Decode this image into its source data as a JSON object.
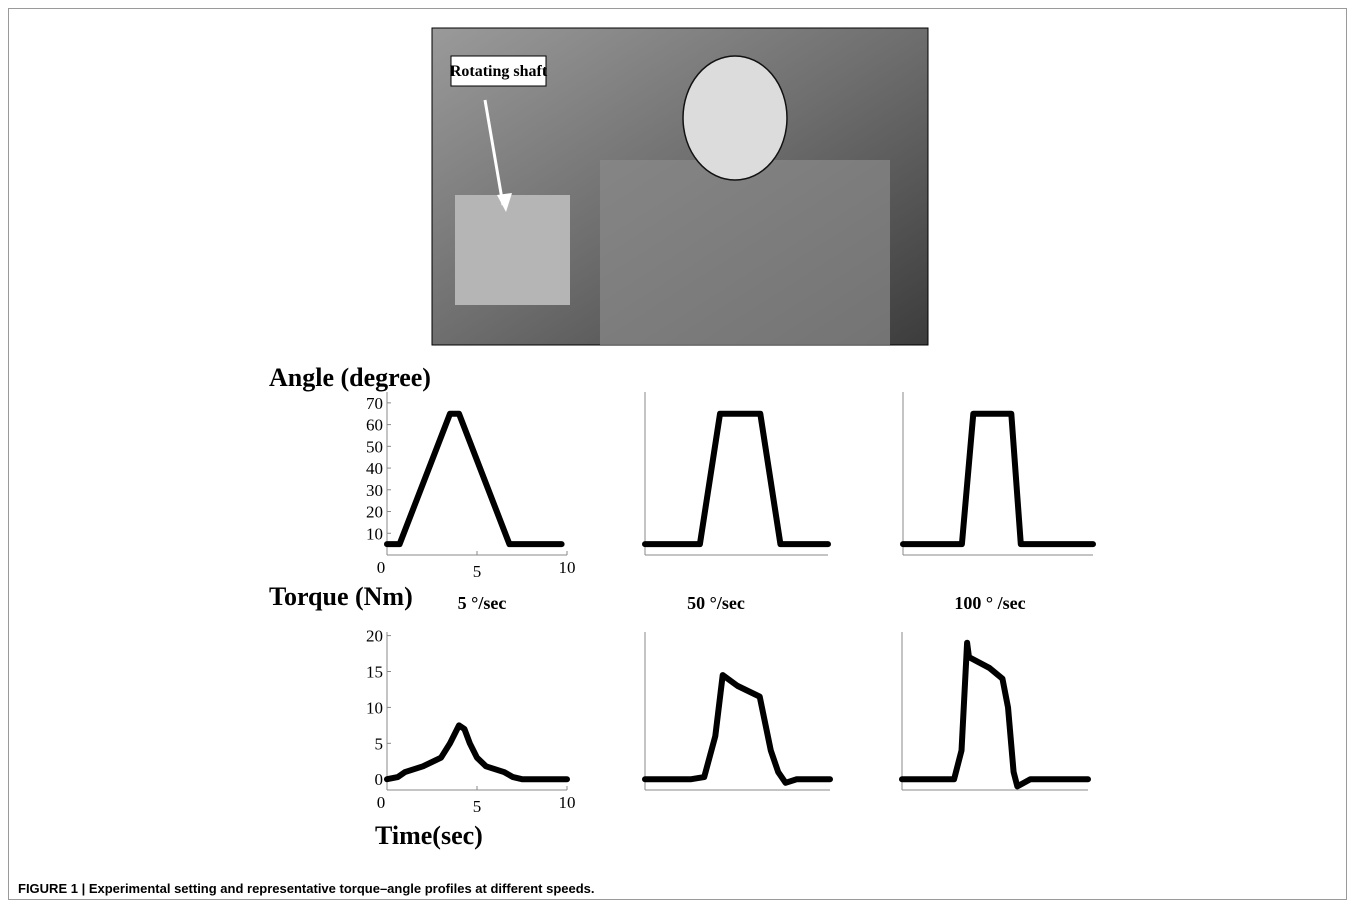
{
  "figure": {
    "photo_label": "Rotating shaft",
    "angle_label": "Angle (degree)",
    "torque_label": "Torque (Nm)",
    "time_label": "Time(sec)",
    "speeds": [
      "5 °/sec",
      "50 °/sec",
      "100 ° /sec"
    ],
    "caption": "FIGURE 1 | Experimental setting and representative torque–angle profiles at different speeds."
  },
  "chart_data": [
    {
      "type": "line",
      "x": [
        0,
        0.7,
        3.5,
        4.0,
        6.8,
        9.7
      ],
      "values": [
        5,
        5,
        65,
        65,
        5,
        5
      ],
      "color": "#000000",
      "xlim": [
        0,
        10
      ],
      "ylim": [
        0,
        75
      ],
      "xticks": [
        0,
        5,
        10
      ],
      "yticks": [
        10,
        20,
        30,
        40,
        50,
        60,
        70
      ]
    },
    {
      "type": "line",
      "x": [
        0,
        3.0,
        4.1,
        6.3,
        7.4,
        10
      ],
      "values": [
        5,
        5,
        65,
        65,
        5,
        5
      ],
      "color": "#000000",
      "xlim": [
        0,
        10
      ],
      "ylim": [
        0,
        75
      ]
    },
    {
      "type": "line",
      "x": [
        0,
        3.1,
        3.7,
        5.7,
        6.2,
        10
      ],
      "values": [
        5,
        5,
        65,
        65,
        5,
        5
      ],
      "color": "#000000",
      "xlim": [
        0,
        10
      ],
      "ylim": [
        0,
        75
      ]
    },
    {
      "type": "line",
      "x": [
        0,
        0.6,
        1,
        2,
        3,
        3.5,
        4,
        4.3,
        4.6,
        5,
        5.5,
        6.5,
        7,
        7.5,
        10
      ],
      "values": [
        0,
        0.3,
        1,
        1.8,
        3,
        5,
        7.5,
        7,
        5,
        3,
        1.8,
        1,
        0.3,
        0,
        0
      ],
      "color": "#000000",
      "xlim": [
        0,
        10
      ],
      "ylim": [
        -1.5,
        20.5
      ],
      "xticks": [
        0,
        5,
        10
      ],
      "yticks": [
        0,
        5,
        10,
        15,
        20
      ]
    },
    {
      "type": "line",
      "x": [
        0,
        2.5,
        3.2,
        3.8,
        4.2,
        5.0,
        6.2,
        6.8,
        7.2,
        7.6,
        8.2,
        10
      ],
      "values": [
        0,
        0,
        0.3,
        6,
        14.5,
        13,
        11.5,
        4,
        1,
        -0.5,
        0,
        0
      ],
      "color": "#000000",
      "xlim": [
        0,
        10
      ],
      "ylim": [
        -1.5,
        20.5
      ]
    },
    {
      "type": "line",
      "x": [
        0,
        2.8,
        3.2,
        3.5,
        3.6,
        4.7,
        5.4,
        5.7,
        6.0,
        6.2,
        6.9,
        10
      ],
      "values": [
        0,
        0,
        4,
        19,
        17,
        15.5,
        14,
        10,
        1,
        -1,
        0,
        0
      ],
      "color": "#000000",
      "xlim": [
        0,
        10
      ],
      "ylim": [
        -1.5,
        20.5
      ]
    }
  ]
}
